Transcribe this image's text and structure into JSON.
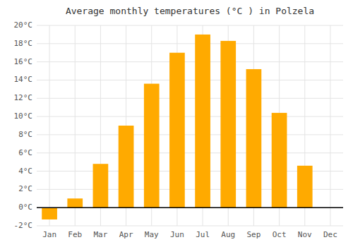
{
  "chart_data": {
    "type": "bar",
    "title": "Average monthly temperatures (°C ) in Polzela",
    "categories": [
      "Jan",
      "Feb",
      "Mar",
      "Apr",
      "May",
      "Jun",
      "Jul",
      "Aug",
      "Sep",
      "Oct",
      "Nov",
      "Dec"
    ],
    "values": [
      -1.3,
      1.0,
      4.8,
      9.0,
      13.6,
      17.0,
      19.0,
      18.3,
      15.2,
      10.4,
      4.6,
      0.0
    ],
    "color": "#FFAA00",
    "ylim": [
      -2,
      20
    ],
    "yticks": [
      {
        "value": -2,
        "label": "-2°C"
      },
      {
        "value": 0,
        "label": "0°C"
      },
      {
        "value": 2,
        "label": "2°C"
      },
      {
        "value": 4,
        "label": "4°C"
      },
      {
        "value": 6,
        "label": "6°C"
      },
      {
        "value": 8,
        "label": "8°C"
      },
      {
        "value": 10,
        "label": "10°C"
      },
      {
        "value": 12,
        "label": "12°C"
      },
      {
        "value": 14,
        "label": "14°C"
      },
      {
        "value": 16,
        "label": "16°C"
      },
      {
        "value": 18,
        "label": "18°C"
      },
      {
        "value": 20,
        "label": "20°C"
      }
    ],
    "grid": true
  }
}
